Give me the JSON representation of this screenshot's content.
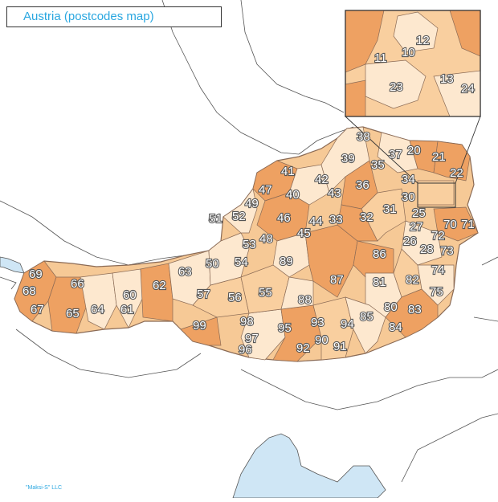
{
  "map": {
    "title": "Austria (postcodes map)",
    "credit": "\"Maksi-S\" LLC",
    "colors": {
      "light": "#fde8cf",
      "mid": "#f9cf9f",
      "dark": "#eea162",
      "border": "#8a6a55",
      "neighbor_line": "#555555",
      "water": "#cfe6f5",
      "background": "#ffffff"
    },
    "postcodes": [
      "10",
      "11",
      "12",
      "13",
      "20",
      "21",
      "22",
      "23",
      "24",
      "25",
      "26",
      "27",
      "28",
      "30",
      "31",
      "32",
      "33",
      "34",
      "35",
      "36",
      "37",
      "38",
      "39",
      "40",
      "41",
      "42",
      "43",
      "44",
      "45",
      "46",
      "47",
      "48",
      "49",
      "50",
      "51",
      "52",
      "53",
      "54",
      "55",
      "56",
      "57",
      "60",
      "61",
      "62",
      "63",
      "64",
      "65",
      "66",
      "67",
      "68",
      "69",
      "70",
      "71",
      "72",
      "73",
      "74",
      "75",
      "80",
      "81",
      "82",
      "83",
      "84",
      "85",
      "86",
      "87",
      "88",
      "89",
      "90",
      "91",
      "92",
      "93",
      "94",
      "95",
      "96",
      "97",
      "98",
      "99"
    ],
    "inset": {
      "labels": [
        "10",
        "11",
        "12",
        "13",
        "23",
        "24"
      ]
    }
  }
}
